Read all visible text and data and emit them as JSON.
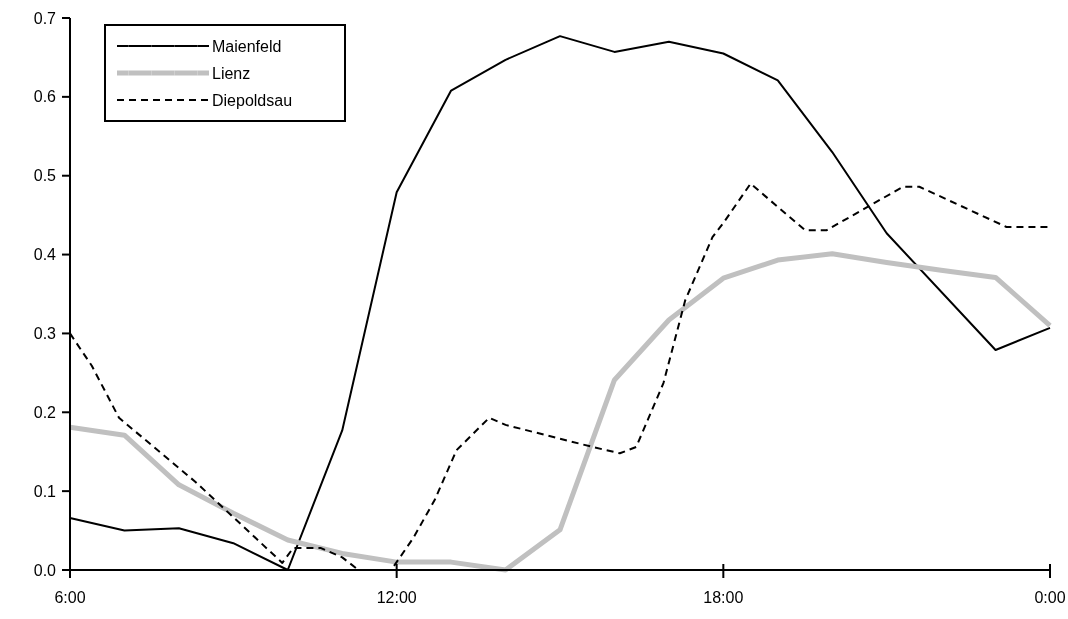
{
  "chart_data": {
    "type": "line",
    "xlim": [
      6,
      24
    ],
    "xticks": [
      {
        "value": 6,
        "label": "6:00"
      },
      {
        "value": 12,
        "label": "12:00"
      },
      {
        "value": 18,
        "label": "18:00"
      },
      {
        "value": 24,
        "label": "0:00"
      }
    ],
    "ylim": [
      0,
      0.7
    ],
    "yticks": [
      {
        "value": 0,
        "label": "0.0"
      },
      0.1,
      0.2,
      0.3,
      0.4,
      0.5,
      0.6,
      0.7
    ],
    "grid": false,
    "legend": "top left",
    "marker": "none",
    "series": [
      {
        "name": "Maienfeld",
        "color": "#000000",
        "line_style": "solid",
        "x": [
          6,
          7,
          8,
          9,
          10,
          11,
          12,
          13,
          14,
          15,
          16,
          17,
          18,
          19,
          20,
          21,
          23,
          24
        ],
        "values": [
          0.066,
          0.05,
          0.053,
          0.034,
          0,
          0.177,
          0.479,
          0.608,
          0.647,
          0.677,
          0.657,
          0.67,
          0.655,
          0.621,
          0.53,
          0.427,
          0.279,
          0.307
        ]
      },
      {
        "name": "Lienz",
        "color": "#c0c0c0",
        "line_style": "solid",
        "x": [
          6,
          7,
          8,
          9,
          10,
          11,
          12,
          13,
          14,
          15,
          16,
          17,
          18,
          19,
          20,
          21,
          22,
          23,
          24
        ],
        "values": [
          0.181,
          0.171,
          0.108,
          0.072,
          0.038,
          0.021,
          0.01,
          0.01,
          0,
          0.051,
          0.241,
          0.317,
          0.37,
          0.393,
          0.401,
          0.39,
          0.38,
          0.371,
          0.31
        ]
      },
      {
        "name": "Diepoldsau",
        "color": "#000000",
        "line_style": "dashed",
        "x": [
          6,
          6.4,
          6.9,
          8.3,
          9.9,
          10.1,
          10.6,
          11,
          11.3,
          11.9,
          12.3,
          12.7,
          13.1,
          13.7,
          14,
          15.6,
          16.1,
          16.4,
          16.9,
          17.3,
          17.8,
          18,
          18.5,
          19.5,
          19.9,
          21.3,
          21.6,
          23.2,
          24
        ],
        "values": [
          0.3,
          0.259,
          0.193,
          0.112,
          0.009,
          0.028,
          0.028,
          0.016,
          0,
          0,
          0.04,
          0.089,
          0.152,
          0.193,
          0.184,
          0.156,
          0.148,
          0.156,
          0.237,
          0.342,
          0.422,
          0.44,
          0.49,
          0.431,
          0.431,
          0.486,
          0.486,
          0.435,
          0.435
        ]
      }
    ]
  }
}
